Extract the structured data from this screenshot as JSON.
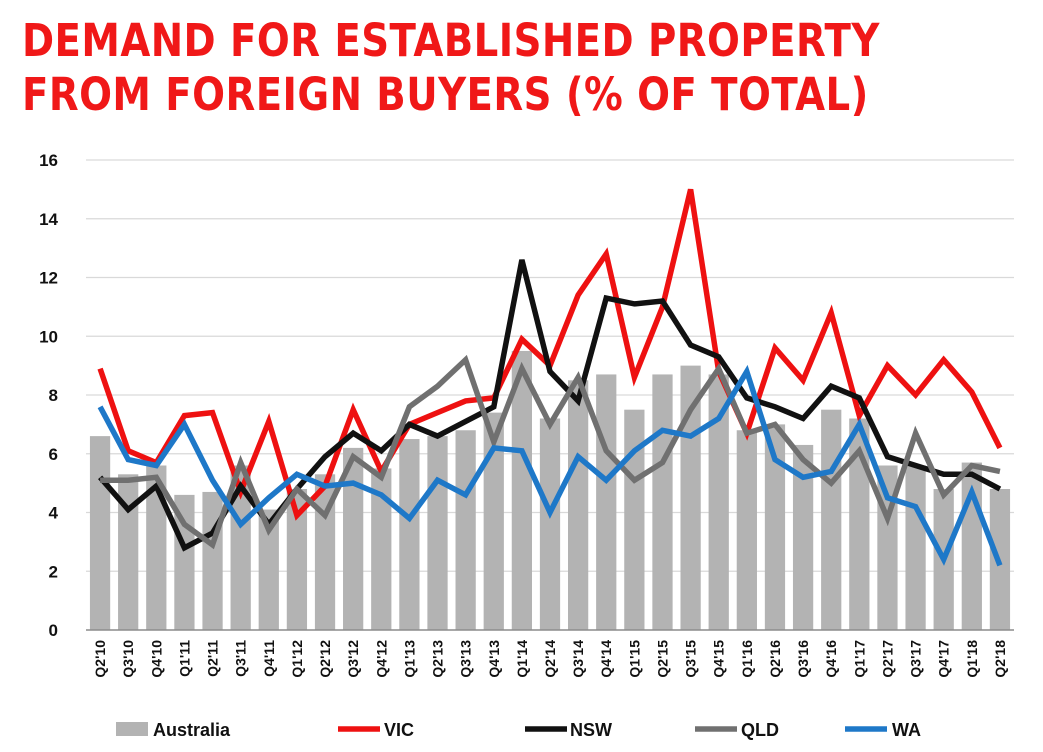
{
  "chart_data": {
    "type": "bar+line",
    "title_lines": [
      "DEMAND FOR ESTABLISHED PROPERTY",
      "FROM FOREIGN BUYERS (% OF TOTAL)"
    ],
    "categories": [
      "Q2'10",
      "Q3'10",
      "Q4'10",
      "Q1'11",
      "Q2'11",
      "Q3'11",
      "Q4'11",
      "Q1'12",
      "Q2'12",
      "Q3'12",
      "Q4'12",
      "Q1'13",
      "Q2'13",
      "Q3'13",
      "Q4'13",
      "Q1'14",
      "Q2'14",
      "Q3'14",
      "Q4'14",
      "Q1'15",
      "Q2'15",
      "Q3'15",
      "Q4'15",
      "Q1'16",
      "Q2'16",
      "Q3'16",
      "Q4'16",
      "Q1'17",
      "Q2'17",
      "Q3'17",
      "Q4'17",
      "Q1'18",
      "Q2'18"
    ],
    "ylim": [
      0,
      16
    ],
    "yticks": [
      "0",
      "2",
      "4",
      "6",
      "8",
      "10",
      "12",
      "14",
      "16"
    ],
    "grid": true,
    "legend_position": "bottom",
    "series": [
      {
        "name": "Australia",
        "kind": "bar",
        "color": "#b3b3b3",
        "values": [
          6.6,
          5.3,
          5.6,
          4.6,
          4.7,
          5.6,
          4.1,
          4.8,
          5.3,
          6.2,
          5.5,
          6.5,
          6.6,
          6.8,
          7.4,
          9.5,
          7.2,
          8.5,
          8.7,
          7.5,
          8.7,
          9.0,
          8.7,
          6.8,
          7.0,
          6.3,
          7.5,
          7.2,
          5.6,
          5.6,
          4.8,
          5.7,
          4.8
        ]
      },
      {
        "name": "VIC",
        "kind": "line",
        "color": "#ee1111",
        "values": [
          8.9,
          6.1,
          5.7,
          7.3,
          7.4,
          4.7,
          7.1,
          3.9,
          4.9,
          7.5,
          5.4,
          7.0,
          7.4,
          7.8,
          7.9,
          9.9,
          9.0,
          11.4,
          12.8,
          8.6,
          11.0,
          15.0,
          8.8,
          6.7,
          9.6,
          8.5,
          10.8,
          7.3,
          9.0,
          8.0,
          9.2,
          8.1,
          6.2
        ]
      },
      {
        "name": "NSW",
        "kind": "line",
        "color": "#111111",
        "values": [
          5.2,
          4.1,
          4.9,
          2.8,
          3.3,
          4.9,
          3.6,
          4.8,
          5.9,
          6.7,
          6.1,
          7.0,
          6.6,
          7.1,
          7.6,
          12.6,
          8.8,
          7.8,
          11.3,
          11.1,
          11.2,
          9.7,
          9.3,
          7.9,
          7.6,
          7.2,
          8.3,
          7.9,
          5.9,
          5.6,
          5.3,
          5.3,
          4.8
        ]
      },
      {
        "name": "QLD",
        "kind": "line",
        "color": "#707070",
        "values": [
          5.1,
          5.1,
          5.2,
          3.6,
          2.9,
          5.7,
          3.4,
          4.8,
          3.9,
          5.9,
          5.2,
          7.6,
          8.3,
          9.2,
          6.4,
          8.9,
          7.0,
          8.6,
          6.1,
          5.1,
          5.7,
          7.5,
          8.9,
          6.7,
          7.0,
          5.8,
          5.0,
          6.1,
          3.8,
          6.7,
          4.6,
          5.6,
          5.4
        ]
      },
      {
        "name": "WA",
        "kind": "line",
        "color": "#1e78c8",
        "values": [
          7.6,
          5.8,
          5.6,
          7.0,
          5.1,
          3.6,
          4.5,
          5.3,
          4.9,
          5.0,
          4.6,
          3.8,
          5.1,
          4.6,
          6.2,
          6.1,
          4.0,
          5.9,
          5.1,
          6.1,
          6.8,
          6.6,
          7.2,
          8.8,
          5.8,
          5.2,
          5.4,
          7.0,
          4.5,
          4.2,
          2.4,
          4.7,
          2.2
        ]
      }
    ]
  }
}
